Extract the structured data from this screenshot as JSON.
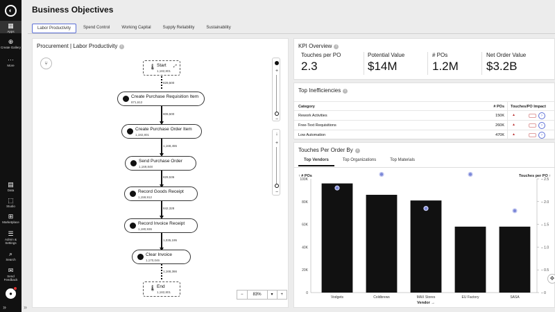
{
  "rail": {
    "items": [
      {
        "label": "Apps",
        "icon": "apps-icon"
      },
      {
        "label": "Create Gallery",
        "icon": "gallery-icon"
      },
      {
        "label": "More",
        "icon": "more-icon"
      },
      {
        "label": "Data",
        "icon": "data-icon"
      },
      {
        "label": "Studio",
        "icon": "studio-icon"
      },
      {
        "label": "Marketplace",
        "icon": "marketplace-icon"
      },
      {
        "label": "Admin & Settings",
        "icon": "settings-icon"
      },
      {
        "label": "Search",
        "icon": "search-icon"
      },
      {
        "label": "Send Feedback",
        "icon": "feedback-icon"
      }
    ]
  },
  "header": {
    "title": "Business Objectives"
  },
  "tabs": [
    "Labor Productivity",
    "Spend Control",
    "Working Capital",
    "Supply Reliability",
    "Sustainability"
  ],
  "process_map": {
    "title": "Procurement | Labor Productivity",
    "nodes": [
      {
        "name": "Start",
        "count": "1,182,801"
      },
      {
        "name": "Create Purchase Requisition Item",
        "count": "871,612"
      },
      {
        "name": "Create Purchase Order Item",
        "count": "1,182,801"
      },
      {
        "name": "Send Purchase Order",
        "count": "1,169,848"
      },
      {
        "name": "Record Goods Receipt",
        "count": "1,159,912"
      },
      {
        "name": "Record Invoice Receipt",
        "count": "1,180,936"
      },
      {
        "name": "Clear Invoice",
        "count": "1,170,046"
      },
      {
        "name": "End",
        "count": "1,182,801"
      }
    ],
    "edges": [
      "829,500",
      "809,500",
      "1,168,455",
      "829,536",
      "842,328",
      "1,035,195",
      "1,168,366"
    ],
    "zoom": "83%",
    "zoom_minus": "−",
    "zoom_plus": "+",
    "zoom_caret": "▾"
  },
  "kpi": {
    "title": "KPI Overview",
    "items": [
      {
        "label": "Touches per PO",
        "value": "2.3"
      },
      {
        "label": "Potential Value",
        "value": "$14M"
      },
      {
        "label": "# POs",
        "value": "1.2M"
      },
      {
        "label": "Net Order Value",
        "value": "$3.2B"
      }
    ]
  },
  "inefficiencies": {
    "title": "Top Inefficiencies",
    "headers": {
      "category": "Category",
      "pos": "# POs",
      "impact": "Touches/PO Impact"
    },
    "rows": [
      {
        "category": "Rework Activities",
        "pos": "150K"
      },
      {
        "category": "Free-Text Requisitions",
        "pos": "260K"
      },
      {
        "category": "Low Automation",
        "pos": "470K"
      }
    ]
  },
  "touches": {
    "title": "Touches Per Order By",
    "tabs": [
      "Top Vendors",
      "Top Organizations",
      "Top Materials"
    ]
  },
  "chart_data": {
    "type": "bar",
    "categories": [
      "Vodgets",
      "Coldbrews",
      "MAX Stores",
      "EU Factory",
      "SASA"
    ],
    "series": [
      {
        "name": "# POs",
        "type": "bar",
        "values": [
          96000,
          86000,
          81000,
          58000,
          58000
        ],
        "axis": "left"
      },
      {
        "name": "Touches per PO",
        "type": "scatter",
        "values": [
          2.3,
          2.6,
          1.85,
          2.6,
          1.8
        ],
        "axis": "right"
      }
    ],
    "xlabel": "Vendor →",
    "ylabel_left": "↑ # POs",
    "ylabel_right": "Touches per PO ↑",
    "ylim_left": [
      0,
      100000
    ],
    "ylim_right": [
      0,
      2.5
    ],
    "yticks_left": [
      "0",
      "20K",
      "40K",
      "60K",
      "80K",
      "100K"
    ],
    "yticks_right": [
      "0",
      "0.5",
      "1.0",
      "1.5",
      "2.0",
      "2.5"
    ],
    "bar_color": "#111111",
    "point_color": "#7b87d8"
  }
}
